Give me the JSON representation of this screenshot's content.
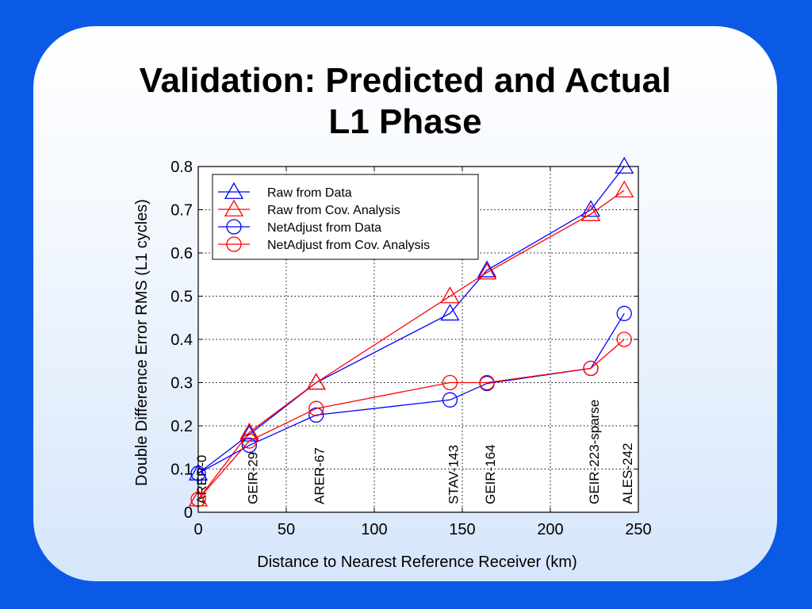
{
  "slide": {
    "title_line1": "Validation: Predicted and Actual",
    "title_line2": "L1 Phase",
    "colors": {
      "background": "#0a5ae6",
      "blue_series": "#0000ff",
      "red_series": "#ff0000"
    }
  },
  "chart_data": {
    "type": "line",
    "title": "",
    "xlabel": "Distance to Nearest Reference Receiver (km)",
    "ylabel": "Double Difference Error RMS (L1 cycles)",
    "xlim": [
      0,
      250
    ],
    "ylim": [
      0,
      0.8
    ],
    "xticks": [
      0,
      50,
      100,
      150,
      200,
      250
    ],
    "yticks": [
      0,
      0.1,
      0.2,
      0.3,
      0.4,
      0.5,
      0.6,
      0.7,
      0.8
    ],
    "xtick_labels": [
      "0",
      "50",
      "100",
      "150",
      "200",
      "250"
    ],
    "ytick_labels": [
      "0",
      "0.1",
      "0.2",
      "0.3",
      "0.4",
      "0.5",
      "0.6",
      "0.7",
      "0.8"
    ],
    "grid": true,
    "legend_position": "top-left",
    "x": [
      0,
      29,
      67,
      143,
      164,
      223,
      242
    ],
    "series": [
      {
        "name": "Raw from Data",
        "marker": "triangle",
        "color": "#0000ff",
        "values": [
          0.09,
          0.18,
          0.3,
          0.46,
          0.56,
          0.7,
          0.8
        ]
      },
      {
        "name": "Raw from Cov. Analysis",
        "marker": "triangle",
        "color": "#ff0000",
        "values": [
          0.03,
          0.185,
          0.3,
          0.5,
          0.555,
          0.69,
          0.745
        ]
      },
      {
        "name": "NetAdjust from Data",
        "marker": "circle",
        "color": "#0000ff",
        "values": [
          0.09,
          0.155,
          0.225,
          0.26,
          0.298,
          0.333,
          0.46
        ]
      },
      {
        "name": "NetAdjust from Cov. Analysis",
        "marker": "circle",
        "color": "#ff0000",
        "values": [
          0.03,
          0.165,
          0.24,
          0.3,
          0.3,
          0.333,
          0.4
        ]
      }
    ],
    "annotations": [
      {
        "text": "ARER-0",
        "x": 0
      },
      {
        "text": "GEIR-29",
        "x": 29
      },
      {
        "text": "ARER-67",
        "x": 67
      },
      {
        "text": "STAV-143",
        "x": 143
      },
      {
        "text": "GEIR-164",
        "x": 164
      },
      {
        "text": "GEIR-223-sparse",
        "x": 223
      },
      {
        "text": "ALES-242",
        "x": 242
      }
    ]
  }
}
